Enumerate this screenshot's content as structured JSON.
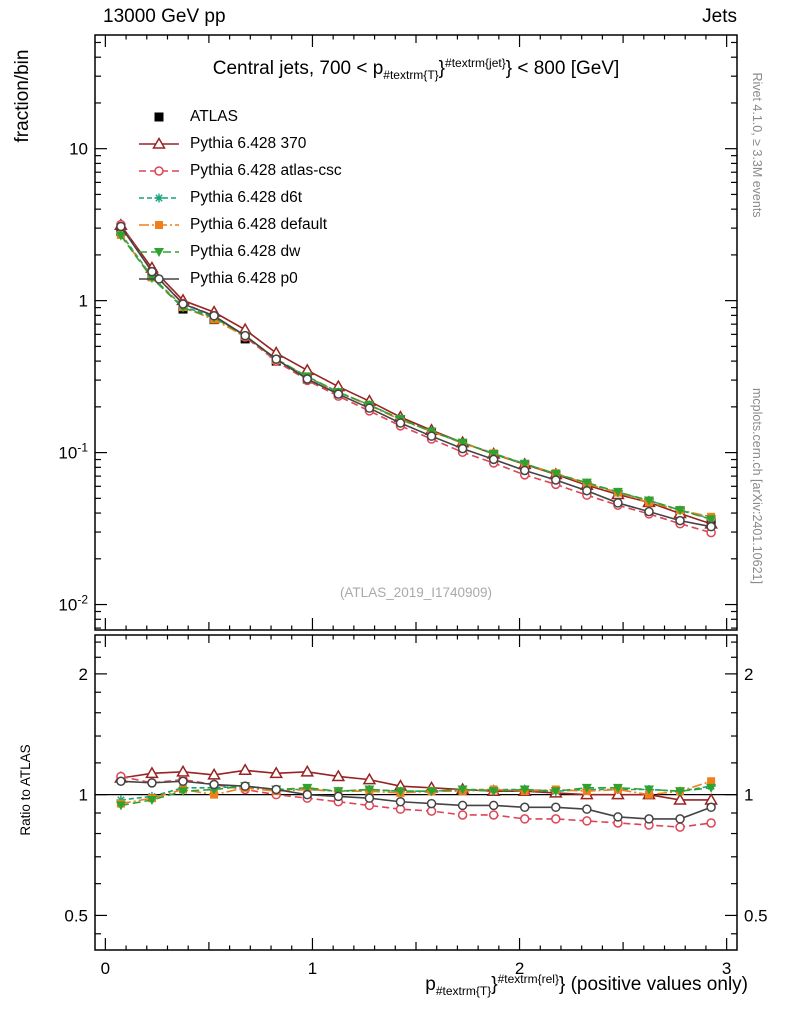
{
  "header": {
    "left": "13000 GeV pp",
    "right": "Jets"
  },
  "panel_title": {
    "prefix": "Central jets, 700 < p",
    "sub": "#textrm{T}",
    "mid": "}",
    "sup": "#textrm{jet}",
    "suffix": "} < 800 [GeV]"
  },
  "xaxis_title": {
    "prefix": "p",
    "sub": "#textrm{T}",
    "mid": "}",
    "sup": "#textrm{rel}",
    "suffix": "} (positive values only)"
  },
  "watermark": "(ATLAS_2019_I1740909)",
  "side_notes": {
    "top_right": "Rivet 4.1.0, ≥ 3.3M events",
    "bottom_right": "mcplots.cern.ch [arXiv:2401.10621]"
  },
  "chart_data": {
    "type": "line",
    "title": "Central jets, 700 < p_#textrm{T}}^#textrm{jet}} < 800 [GeV]",
    "xlabel": "p_#textrm{T}}^#textrm{rel}} (positive values only)",
    "ylabel_main": "fraction/bin",
    "ylabel_ratio": "Ratio to ATLAS",
    "xlim": [
      -0.05,
      3.05
    ],
    "xticks": [
      0,
      1,
      2,
      3
    ],
    "main_ylim": [
      0.0068,
      56
    ],
    "main_yticks": [
      {
        "v": 0.01,
        "base": "10",
        "exp": "-2"
      },
      {
        "v": 0.1,
        "base": "10",
        "exp": "-1"
      },
      {
        "v": 1,
        "base": "1",
        "exp": ""
      },
      {
        "v": 10,
        "base": "10",
        "exp": ""
      }
    ],
    "ratio_ylim": [
      0.41,
      2.5
    ],
    "ratio_yticks": [
      {
        "v": 0.5,
        "label": "0.5"
      },
      {
        "v": 1,
        "label": "1"
      },
      {
        "v": 2,
        "label": "2"
      }
    ],
    "ratio_minor_ticks": [
      0.45,
      0.6,
      0.7,
      0.8,
      0.9,
      1.2,
      1.4,
      1.6,
      1.8,
      2.2,
      2.4
    ],
    "x": [
      0.075,
      0.225,
      0.375,
      0.525,
      0.675,
      0.825,
      0.975,
      1.125,
      1.275,
      1.425,
      1.575,
      1.725,
      1.875,
      2.025,
      2.175,
      2.325,
      2.475,
      2.625,
      2.775,
      2.925
    ],
    "atlas": {
      "name": "ATLAS",
      "color": "#000000",
      "marker": "square-filled",
      "values": [
        2.85,
        1.45,
        0.88,
        0.75,
        0.56,
        0.4,
        0.305,
        0.245,
        0.2,
        0.163,
        0.135,
        0.113,
        0.096,
        0.082,
        0.071,
        0.061,
        0.053,
        0.047,
        0.041,
        0.035
      ]
    },
    "series": [
      {
        "name": "Pythia 6.428 370",
        "color": "#992222",
        "marker": "triangle-open",
        "dash": "",
        "ratio": [
          1.1,
          1.13,
          1.14,
          1.12,
          1.15,
          1.13,
          1.14,
          1.11,
          1.09,
          1.05,
          1.04,
          1.03,
          1.02,
          1.02,
          1.01,
          1.0,
          1.0,
          1.0,
          0.97,
          0.97
        ]
      },
      {
        "name": "Pythia 6.428 atlas-csc",
        "color": "#dd4455",
        "marker": "circle-open",
        "dash": "7,4",
        "ratio": [
          1.11,
          1.07,
          1.09,
          1.06,
          1.03,
          1.0,
          0.98,
          0.96,
          0.94,
          0.92,
          0.91,
          0.89,
          0.89,
          0.87,
          0.87,
          0.86,
          0.85,
          0.84,
          0.83,
          0.85
        ]
      },
      {
        "name": "Pythia 6.428 d6t",
        "color": "#18a47c",
        "marker": "asterisk",
        "dash": "5,3",
        "ratio": [
          0.97,
          0.99,
          1.04,
          1.04,
          1.05,
          1.03,
          1.03,
          1.02,
          1.03,
          1.02,
          1.02,
          1.03,
          1.03,
          1.03,
          1.02,
          1.03,
          1.03,
          1.03,
          1.02,
          1.05
        ]
      },
      {
        "name": "Pythia 6.428 default",
        "color": "#ef7f1a",
        "marker": "square-filled",
        "dash": "10,3,2,3",
        "ratio": [
          0.95,
          0.98,
          1.03,
          1.0,
          1.04,
          1.02,
          1.03,
          1.02,
          1.02,
          1.01,
          1.02,
          1.02,
          1.03,
          1.02,
          1.03,
          1.02,
          1.03,
          1.0,
          1.02,
          1.08
        ]
      },
      {
        "name": "Pythia 6.428 dw",
        "color": "#2fa32f",
        "marker": "triangle-down-filled",
        "dash": "8,4",
        "ratio": [
          0.94,
          0.97,
          1.02,
          1.03,
          1.05,
          1.03,
          1.04,
          1.02,
          1.03,
          1.02,
          1.02,
          1.03,
          1.02,
          1.03,
          1.02,
          1.04,
          1.04,
          1.03,
          1.02,
          1.04
        ]
      },
      {
        "name": "Pythia 6.428 p0",
        "color": "#444444",
        "marker": "circle-open",
        "dash": "",
        "ratio": [
          1.08,
          1.07,
          1.08,
          1.06,
          1.05,
          1.03,
          1.0,
          0.99,
          0.98,
          0.96,
          0.95,
          0.94,
          0.94,
          0.93,
          0.93,
          0.92,
          0.88,
          0.87,
          0.87,
          0.93
        ]
      }
    ]
  }
}
